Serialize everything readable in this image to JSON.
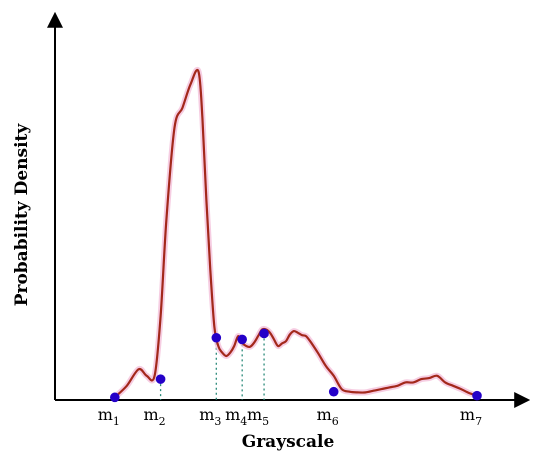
{
  "chart_data": {
    "type": "line",
    "title": "",
    "xlabel": "Grayscale",
    "ylabel": "Probability Density",
    "xlim": [
      0,
      100
    ],
    "ylim": [
      0,
      1
    ],
    "grid": false,
    "legend": "none",
    "colors": {
      "curve": "#a3281b",
      "halo": "#f2b8d6",
      "marker": "#2400c8",
      "guide": "#2a8a7a",
      "axis": "#000000"
    },
    "series": [
      {
        "x": [
          9,
          12,
          15,
          17,
          19,
          20.5,
          22,
          24,
          26,
          28,
          30,
          31,
          32,
          33,
          34,
          35,
          36,
          37,
          38,
          39,
          40,
          41,
          42,
          43,
          44,
          45,
          46,
          47,
          48,
          49,
          50,
          51,
          52,
          53,
          54,
          55,
          56,
          57,
          58,
          60,
          62,
          64,
          66,
          68,
          70,
          72,
          74,
          76,
          78,
          80,
          82,
          84,
          86,
          88,
          90,
          92,
          94,
          96,
          98,
          100
        ],
        "y": [
          0.005,
          0.04,
          0.09,
          0.07,
          0.07,
          0.25,
          0.55,
          0.82,
          0.88,
          0.95,
          0.99,
          0.85,
          0.6,
          0.39,
          0.22,
          0.16,
          0.14,
          0.13,
          0.14,
          0.16,
          0.19,
          0.17,
          0.16,
          0.158,
          0.17,
          0.19,
          0.21,
          0.21,
          0.2,
          0.18,
          0.16,
          0.168,
          0.175,
          0.195,
          0.205,
          0.2,
          0.193,
          0.19,
          0.176,
          0.14,
          0.1,
          0.07,
          0.03,
          0.022,
          0.02,
          0.02,
          0.025,
          0.03,
          0.035,
          0.04,
          0.05,
          0.05,
          0.06,
          0.063,
          0.07,
          0.05,
          0.04,
          0.03,
          0.018,
          0.01
        ]
      }
    ],
    "markers": [
      {
        "label": "m",
        "sub": "1",
        "x": 9,
        "y": 0.005
      },
      {
        "label": "m",
        "sub": "2",
        "x": 20.5,
        "y": 0.06
      },
      {
        "label": "m",
        "sub": "3",
        "x": 34.5,
        "y": 0.185
      },
      {
        "label": "m",
        "sub": "4",
        "x": 41,
        "y": 0.18
      },
      {
        "label": "m",
        "sub": "5",
        "x": 46.5,
        "y": 0.198
      },
      {
        "label": "m",
        "sub": "6",
        "x": 64,
        "y": 0.022
      },
      {
        "label": "m",
        "sub": "7",
        "x": 100,
        "y": 0.01
      }
    ]
  }
}
